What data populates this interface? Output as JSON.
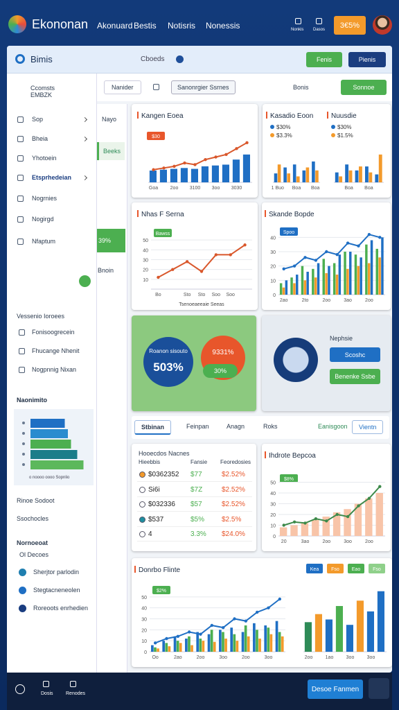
{
  "header": {
    "brand": "Ekononan",
    "nav": [
      "Akonuard",
      "Bestis",
      "Notisris",
      "Nonessis"
    ],
    "icons": [
      "Nonkis",
      "Dasos"
    ],
    "badge": "3€5%"
  },
  "panel": {
    "title": "Bimis",
    "search": "Cboeds",
    "buttons": [
      "Fenis",
      "Pienis"
    ]
  },
  "toolbar": {
    "items": [
      "Nanider",
      "Sanonrgier Ssrnes"
    ],
    "right": "Bonis",
    "action": "Sonnoe"
  },
  "sidebar": {
    "top": "Ccomsts EMBZK",
    "items": [
      "Sop",
      "Bheia",
      "Yhotoein",
      "Etsprhedeian",
      "Nogrnies",
      "Nogirgd",
      "Nfaptum"
    ],
    "section": "Vessenio Ioroees",
    "section_items": [
      "Fonisoogrecein",
      "Fhucange Nhenit",
      "Nogpnnig Nixan"
    ],
    "links": [
      "Rinoe Sodoot",
      "Ssochocles"
    ],
    "footer_title": "Nornoeoat",
    "footer_sub": "Ol Decoes",
    "footer_items": [
      "Sherjtor parlodin",
      "Stegtacneneolen",
      "Roreoots enrhedien"
    ]
  },
  "rail": {
    "items": [
      "Nayo",
      "Beeks",
      "39%",
      "Bnoin"
    ]
  },
  "charts": [
    {
      "type": "combo",
      "title": "Kangen Eoea",
      "badge": "$30",
      "categories": [
        "Goa",
        null,
        "2oo",
        null,
        "3100",
        null,
        "3oo",
        null,
        "3030",
        null
      ],
      "ylim": [
        0,
        60
      ],
      "series": [
        {
          "type": "bar",
          "color": "#1f6fc4",
          "values": [
            14,
            15,
            16,
            17,
            16,
            19,
            20,
            21,
            27,
            33
          ]
        },
        {
          "type": "line",
          "color": "#d9572b",
          "values": [
            15,
            17,
            19,
            23,
            21,
            27,
            30,
            33,
            40,
            47
          ]
        }
      ]
    },
    {
      "type": "bar",
      "title": "Kasadio Eoon",
      "labels": [
        "$30%",
        "$3.3%"
      ],
      "categories": [
        "1 Buo",
        null,
        "Boa",
        null,
        "Boa"
      ],
      "ylim": [
        0,
        20
      ],
      "series": [
        {
          "type": "bar",
          "color": "#1f6fc4",
          "values": [
            6,
            10,
            12,
            8,
            14
          ]
        },
        {
          "type": "bar",
          "color": "#f39a2b",
          "values": [
            12,
            6,
            4,
            10,
            8
          ]
        }
      ]
    },
    {
      "type": "bar",
      "title": "Nuusdie",
      "labels": [
        "$30%",
        "$1.5%"
      ],
      "categories": [
        null,
        "Boa",
        null,
        "Boa",
        null
      ],
      "ylim": [
        0,
        30
      ],
      "series": [
        {
          "type": "bar",
          "color": "#1f6fc4",
          "values": [
            10,
            18,
            12,
            16,
            8
          ]
        },
        {
          "type": "bar",
          "color": "#f39a2b",
          "values": [
            6,
            12,
            16,
            10,
            28
          ]
        }
      ]
    },
    {
      "type": "line",
      "title": "Nhas F Serna",
      "badge": "Bawss",
      "categories": [
        "Bo",
        null,
        "Sto",
        "Sto",
        "Soo",
        "Soo",
        null
      ],
      "ylim": [
        0,
        60
      ],
      "yticks": [
        10,
        20,
        30,
        40,
        50
      ],
      "xlabel": "Tsenoeaeeaie Seeas",
      "series": [
        {
          "type": "line",
          "color": "#d9572b",
          "values": [
            12,
            20,
            28,
            18,
            35,
            35,
            45
          ]
        }
      ]
    },
    {
      "type": "combo",
      "title": "Skande Bopde",
      "badge": "Spoo",
      "categories": [
        "2ao",
        null,
        "2to",
        null,
        "2oo",
        null,
        "3ao",
        null,
        "2oo",
        null
      ],
      "ylim": [
        0,
        45
      ],
      "yticks": [
        0,
        10,
        20,
        30,
        40
      ],
      "series": [
        {
          "type": "bar",
          "color": "#4caf50",
          "values": [
            8,
            12,
            20,
            18,
            25,
            22,
            30,
            28,
            35,
            32
          ]
        },
        {
          "type": "bar",
          "color": "#f39a2b",
          "values": [
            5,
            8,
            10,
            12,
            15,
            14,
            18,
            20,
            22,
            26
          ]
        },
        {
          "type": "bar",
          "color": "#1f6fc4",
          "values": [
            10,
            14,
            16,
            22,
            20,
            28,
            30,
            26,
            38,
            40
          ]
        },
        {
          "type": "line",
          "color": "#1f6fc4",
          "values": [
            18,
            20,
            26,
            24,
            30,
            28,
            36,
            34,
            42,
            40
          ]
        }
      ]
    },
    {
      "type": "combo",
      "title": "Ihdrote Bepcoa",
      "badge": "$8%",
      "categories": [
        "20",
        null,
        "3ao",
        null,
        "2oo",
        null,
        "3oo",
        null,
        "2oo",
        null
      ],
      "ylim": [
        0,
        60
      ],
      "yticks": [
        0,
        10,
        20,
        30,
        40,
        50
      ],
      "series": [
        {
          "type": "bar",
          "color": "#f8c4a8",
          "values": [
            8,
            10,
            12,
            15,
            18,
            22,
            25,
            30,
            35,
            40
          ]
        },
        {
          "type": "line",
          "color": "#3d8a4a",
          "values": [
            10,
            13,
            12,
            16,
            14,
            20,
            18,
            28,
            35,
            46
          ]
        }
      ]
    },
    {
      "type": "combo",
      "title": "Donrbo Flinte",
      "badge": "$2%",
      "categories": [
        "Oo",
        null,
        "2ao",
        null,
        "2oo",
        null,
        "3oo",
        null,
        "2oo",
        null,
        "3oo",
        null
      ],
      "ylim": [
        0,
        60
      ],
      "yticks": [
        0,
        10,
        20,
        30,
        40,
        50
      ],
      "series": [
        {
          "type": "bar",
          "color": "#1f6fc4",
          "values": [
            6,
            10,
            14,
            12,
            18,
            16,
            20,
            22,
            18,
            26,
            24,
            28
          ]
        },
        {
          "type": "bar",
          "color": "#4caf50",
          "values": [
            4,
            8,
            10,
            14,
            12,
            20,
            18,
            16,
            24,
            20,
            22,
            18
          ]
        },
        {
          "type": "bar",
          "color": "#f39a2b",
          "values": [
            3,
            5,
            8,
            6,
            10,
            9,
            12,
            10,
            14,
            12,
            16,
            14
          ]
        },
        {
          "type": "line",
          "color": "#1f6fc4",
          "values": [
            8,
            12,
            14,
            18,
            16,
            24,
            22,
            30,
            28,
            36,
            40,
            48
          ]
        }
      ]
    },
    {
      "type": "bar",
      "buttons": [
        "Kea",
        "Fso",
        "Eao",
        "Fso"
      ],
      "button_colors": [
        "#1f6fc4",
        "#f39a2b",
        "#4caf50",
        "#8fd08a"
      ],
      "categories": [
        "2oo",
        null,
        "1ao",
        null,
        "3oo",
        null,
        "3oo",
        null
      ],
      "ylim": [
        0,
        50
      ],
      "series": [
        {
          "type": "bar",
          "colors": [
            "#2e8b57",
            "#f39a2b",
            "#1f6fc4",
            "#4caf50",
            "#1f6fc4",
            "#f39a2b",
            "#1f6fc4",
            "#1f6fc4"
          ],
          "values": [
            22,
            28,
            24,
            34,
            20,
            38,
            30,
            45
          ]
        }
      ]
    },
    {
      "type": "hbar",
      "title": "Naonimito",
      "caption": "o noooo oooo Sopnlio",
      "xlim": [
        0,
        100
      ],
      "colors": [
        "#1f6fc4",
        "#2a8ccf",
        "#4caf50",
        "#1c7d8a",
        "#5cb85c"
      ],
      "values": [
        55,
        60,
        65,
        75,
        85
      ]
    }
  ],
  "promo": {
    "left_label": "Roanon sisouto",
    "left_value": "503%",
    "right_value": "9331%",
    "bubble": "30%"
  },
  "card": {
    "title": "Nephsie",
    "buttons": [
      "Scoshc",
      "Benenke Ssbe"
    ]
  },
  "tabs": [
    "Stbinan",
    "Feinpan",
    "Anagn",
    "Roks",
    "Eanisgoon",
    "Vientn"
  ],
  "table": {
    "title": "Hooecdos Nacnes",
    "columns": [
      "Hieebbis",
      "Fansie",
      "Feoredosies"
    ],
    "rows": [
      [
        "$0362352",
        "$77",
        "$2.52%"
      ],
      [
        "Si6i",
        "$7Z",
        "$2.52%"
      ],
      [
        "$032336",
        "$57",
        "$2.52%"
      ],
      [
        "$537",
        "$5%",
        "$2.5%"
      ],
      [
        "4",
        "3.3%",
        "$24.0%"
      ]
    ]
  },
  "bottom": {
    "items": [
      "Dosis",
      "Renodes"
    ],
    "button": "Desoe Fanmen"
  }
}
